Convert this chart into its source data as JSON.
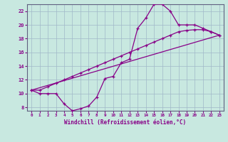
{
  "xlabel": "Windchill (Refroidissement éolien,°C)",
  "xlim": [
    -0.5,
    23.5
  ],
  "ylim": [
    7.5,
    23.0
  ],
  "yticks": [
    8,
    10,
    12,
    14,
    16,
    18,
    20,
    22
  ],
  "xticks": [
    0,
    1,
    2,
    3,
    4,
    5,
    6,
    7,
    8,
    9,
    10,
    11,
    12,
    13,
    14,
    15,
    16,
    17,
    18,
    19,
    20,
    21,
    22,
    23
  ],
  "background_color": "#c8e8e0",
  "grid_color": "#a0b8c8",
  "line_color": "#880088",
  "curve1_x": [
    0,
    1,
    2,
    3,
    4,
    5,
    6,
    7,
    8,
    9,
    10,
    11,
    12,
    13,
    14,
    15,
    16,
    17,
    18,
    19,
    20,
    21,
    22,
    23
  ],
  "curve1_y": [
    10.5,
    10.0,
    10.0,
    10.0,
    8.5,
    7.5,
    7.8,
    8.2,
    9.5,
    12.2,
    12.5,
    14.5,
    15.0,
    19.5,
    21.0,
    23.0,
    23.0,
    22.0,
    20.0,
    20.0,
    20.0,
    19.5,
    19.0,
    18.5
  ],
  "curve2_x": [
    0,
    1,
    2,
    3,
    4,
    5,
    6,
    7,
    8,
    9,
    10,
    11,
    12,
    13,
    14,
    15,
    16,
    17,
    18,
    19,
    20,
    21,
    22,
    23
  ],
  "curve2_y": [
    10.5,
    10.5,
    11.0,
    11.5,
    12.0,
    12.5,
    13.0,
    13.5,
    14.0,
    14.5,
    15.0,
    15.5,
    16.0,
    16.5,
    17.0,
    17.5,
    18.0,
    18.5,
    19.0,
    19.2,
    19.3,
    19.3,
    19.0,
    18.5
  ],
  "line_x": [
    0,
    23
  ],
  "line_y": [
    10.5,
    18.5
  ]
}
